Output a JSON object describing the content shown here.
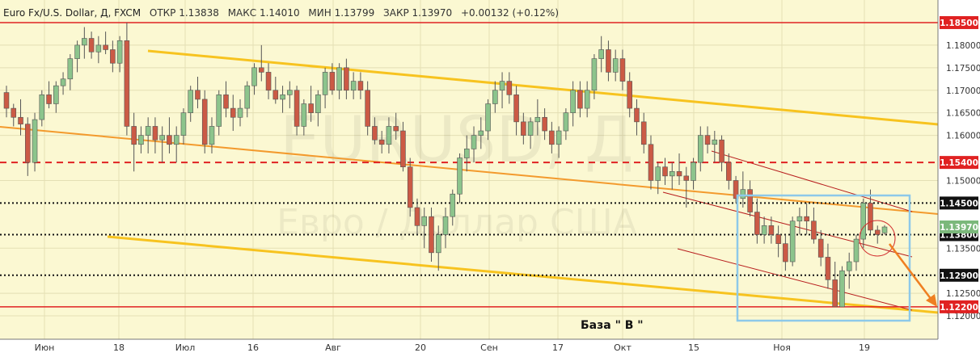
{
  "header": {
    "instrument": "Euro Fx/U.S. Dollar, Д, FXCM",
    "open": "ОТКР 1.13838",
    "high": "МАКС 1.14010",
    "low": "МИН 1.13799",
    "close": "ЗАКР 1.13970",
    "change": "+0.00132 (+0.12%)"
  },
  "watermark": {
    "line1": "EURUSD, Д",
    "line2": "Евро / Доллар США"
  },
  "annotation": "База \" В \"",
  "colors": {
    "background": "#fbf8d2",
    "bull": "#8cc48c",
    "bear": "#cb5a45",
    "channel": "#f7c31f",
    "trend_orange": "#f39a2d",
    "red_level": "#e02222",
    "black_level": "#111111",
    "thin_channel": "#b71c1c",
    "box": "#8dc9e9",
    "arrow": "#ef7f21",
    "circle": "#d32f2f"
  },
  "chart_data": {
    "type": "candlestick",
    "title": "Euro Fx/U.S. Dollar, Д, FXCM",
    "ylim": [
      1.1175,
      1.1875
    ],
    "x_ticks": [
      "Июн",
      "18",
      "Июл",
      "16",
      "Авг",
      "20",
      "Сен",
      "17",
      "Окт",
      "15",
      "Ноя",
      "19"
    ],
    "y_ticks": [
      "1.18000",
      "1.17500",
      "1.17000",
      "1.16500",
      "1.16000",
      "1.15000",
      "1.13500",
      "1.12500",
      "1.12000"
    ],
    "levels": [
      {
        "label": "1.18500",
        "value": 1.185,
        "style": "solid-red"
      },
      {
        "label": "1.15400",
        "value": 1.154,
        "style": "dashed-red"
      },
      {
        "label": "1.14500",
        "value": 1.145,
        "style": "dotted-black"
      },
      {
        "label": "1.13800",
        "value": 1.138,
        "style": "dotted-black"
      },
      {
        "label": "1.12900",
        "value": 1.129,
        "style": "dotted-black"
      },
      {
        "label": "1.12200",
        "value": 1.122,
        "style": "solid-red"
      }
    ],
    "current_price": {
      "label": "1.13970",
      "value": 1.1397
    },
    "candles": [
      [
        1.1695,
        1.171,
        1.164,
        1.166
      ],
      [
        1.166,
        1.167,
        1.162,
        1.164
      ],
      [
        1.164,
        1.168,
        1.16,
        1.1625
      ],
      [
        1.1625,
        1.164,
        1.151,
        1.154
      ],
      [
        1.154,
        1.165,
        1.152,
        1.1635
      ],
      [
        1.1635,
        1.17,
        1.162,
        1.169
      ],
      [
        1.169,
        1.172,
        1.166,
        1.167
      ],
      [
        1.167,
        1.172,
        1.165,
        1.171
      ],
      [
        1.171,
        1.174,
        1.169,
        1.1725
      ],
      [
        1.1725,
        1.178,
        1.17,
        1.177
      ],
      [
        1.177,
        1.181,
        1.174,
        1.18
      ],
      [
        1.18,
        1.184,
        1.177,
        1.1815
      ],
      [
        1.1815,
        1.183,
        1.177,
        1.1785
      ],
      [
        1.1785,
        1.182,
        1.176,
        1.18
      ],
      [
        1.18,
        1.183,
        1.178,
        1.179
      ],
      [
        1.179,
        1.181,
        1.174,
        1.176
      ],
      [
        1.176,
        1.182,
        1.174,
        1.181
      ],
      [
        1.181,
        1.185,
        1.16,
        1.162
      ],
      [
        1.162,
        1.165,
        1.152,
        1.158
      ],
      [
        1.158,
        1.162,
        1.156,
        1.16
      ],
      [
        1.16,
        1.164,
        1.156,
        1.162
      ],
      [
        1.162,
        1.164,
        1.156,
        1.159
      ],
      [
        1.159,
        1.162,
        1.154,
        1.16
      ],
      [
        1.16,
        1.164,
        1.156,
        1.158
      ],
      [
        1.158,
        1.162,
        1.154,
        1.16
      ],
      [
        1.16,
        1.166,
        1.158,
        1.165
      ],
      [
        1.165,
        1.171,
        1.163,
        1.17
      ],
      [
        1.17,
        1.173,
        1.166,
        1.168
      ],
      [
        1.168,
        1.17,
        1.156,
        1.158
      ],
      [
        1.158,
        1.164,
        1.156,
        1.162
      ],
      [
        1.162,
        1.17,
        1.16,
        1.169
      ],
      [
        1.169,
        1.172,
        1.164,
        1.166
      ],
      [
        1.166,
        1.169,
        1.161,
        1.164
      ],
      [
        1.164,
        1.168,
        1.162,
        1.166
      ],
      [
        1.166,
        1.172,
        1.164,
        1.171
      ],
      [
        1.171,
        1.176,
        1.169,
        1.175
      ],
      [
        1.175,
        1.18,
        1.172,
        1.174
      ],
      [
        1.174,
        1.176,
        1.168,
        1.17
      ],
      [
        1.17,
        1.173,
        1.167,
        1.168
      ],
      [
        1.168,
        1.171,
        1.165,
        1.169
      ],
      [
        1.169,
        1.172,
        1.166,
        1.17
      ],
      [
        1.17,
        1.171,
        1.16,
        1.162
      ],
      [
        1.162,
        1.168,
        1.16,
        1.167
      ],
      [
        1.167,
        1.171,
        1.163,
        1.165
      ],
      [
        1.165,
        1.17,
        1.162,
        1.169
      ],
      [
        1.169,
        1.175,
        1.166,
        1.174
      ],
      [
        1.174,
        1.176,
        1.169,
        1.17
      ],
      [
        1.17,
        1.176,
        1.168,
        1.175
      ],
      [
        1.175,
        1.177,
        1.168,
        1.17
      ],
      [
        1.17,
        1.174,
        1.168,
        1.172
      ],
      [
        1.172,
        1.174,
        1.168,
        1.17
      ],
      [
        1.17,
        1.172,
        1.16,
        1.162
      ],
      [
        1.162,
        1.164,
        1.158,
        1.159
      ],
      [
        1.159,
        1.161,
        1.156,
        1.158
      ],
      [
        1.158,
        1.164,
        1.156,
        1.162
      ],
      [
        1.162,
        1.165,
        1.159,
        1.161
      ],
      [
        1.161,
        1.163,
        1.152,
        1.153
      ],
      [
        1.153,
        1.155,
        1.142,
        1.144
      ],
      [
        1.144,
        1.146,
        1.138,
        1.14
      ],
      [
        1.14,
        1.144,
        1.135,
        1.142
      ],
      [
        1.142,
        1.144,
        1.132,
        1.134
      ],
      [
        1.134,
        1.14,
        1.13,
        1.138
      ],
      [
        1.138,
        1.144,
        1.135,
        1.142
      ],
      [
        1.142,
        1.148,
        1.14,
        1.147
      ],
      [
        1.147,
        1.156,
        1.145,
        1.155
      ],
      [
        1.155,
        1.16,
        1.152,
        1.157
      ],
      [
        1.157,
        1.162,
        1.154,
        1.16
      ],
      [
        1.16,
        1.164,
        1.157,
        1.161
      ],
      [
        1.161,
        1.168,
        1.159,
        1.167
      ],
      [
        1.167,
        1.172,
        1.165,
        1.17
      ],
      [
        1.17,
        1.174,
        1.166,
        1.172
      ],
      [
        1.172,
        1.174,
        1.167,
        1.169
      ],
      [
        1.169,
        1.171,
        1.16,
        1.163
      ],
      [
        1.163,
        1.165,
        1.158,
        1.16
      ],
      [
        1.16,
        1.164,
        1.157,
        1.163
      ],
      [
        1.163,
        1.168,
        1.16,
        1.164
      ],
      [
        1.164,
        1.166,
        1.159,
        1.161
      ],
      [
        1.161,
        1.163,
        1.156,
        1.158
      ],
      [
        1.158,
        1.162,
        1.155,
        1.161
      ],
      [
        1.161,
        1.166,
        1.159,
        1.165
      ],
      [
        1.165,
        1.172,
        1.162,
        1.17
      ],
      [
        1.17,
        1.172,
        1.164,
        1.166
      ],
      [
        1.166,
        1.172,
        1.164,
        1.17
      ],
      [
        1.17,
        1.178,
        1.168,
        1.177
      ],
      [
        1.177,
        1.182,
        1.174,
        1.179
      ],
      [
        1.179,
        1.181,
        1.172,
        1.174
      ],
      [
        1.174,
        1.179,
        1.172,
        1.177
      ],
      [
        1.177,
        1.179,
        1.17,
        1.172
      ],
      [
        1.172,
        1.174,
        1.164,
        1.166
      ],
      [
        1.166,
        1.168,
        1.16,
        1.163
      ],
      [
        1.163,
        1.165,
        1.156,
        1.158
      ],
      [
        1.158,
        1.16,
        1.148,
        1.15
      ],
      [
        1.15,
        1.154,
        1.147,
        1.153
      ],
      [
        1.153,
        1.155,
        1.149,
        1.151
      ],
      [
        1.151,
        1.154,
        1.148,
        1.152
      ],
      [
        1.152,
        1.156,
        1.149,
        1.151
      ],
      [
        1.151,
        1.153,
        1.144,
        1.15
      ],
      [
        1.15,
        1.155,
        1.148,
        1.154
      ],
      [
        1.154,
        1.162,
        1.152,
        1.16
      ],
      [
        1.16,
        1.162,
        1.156,
        1.158
      ],
      [
        1.158,
        1.161,
        1.154,
        1.159
      ],
      [
        1.159,
        1.16,
        1.152,
        1.154
      ],
      [
        1.154,
        1.156,
        1.148,
        1.15
      ],
      [
        1.15,
        1.151,
        1.145,
        1.146
      ],
      [
        1.146,
        1.152,
        1.144,
        1.148
      ],
      [
        1.148,
        1.15,
        1.142,
        1.143
      ],
      [
        1.143,
        1.146,
        1.136,
        1.138
      ],
      [
        1.138,
        1.142,
        1.136,
        1.14
      ],
      [
        1.14,
        1.142,
        1.136,
        1.138
      ],
      [
        1.138,
        1.14,
        1.133,
        1.136
      ],
      [
        1.136,
        1.138,
        1.13,
        1.132
      ],
      [
        1.132,
        1.142,
        1.131,
        1.141
      ],
      [
        1.141,
        1.144,
        1.138,
        1.142
      ],
      [
        1.142,
        1.145,
        1.138,
        1.141
      ],
      [
        1.141,
        1.144,
        1.136,
        1.137
      ],
      [
        1.137,
        1.139,
        1.131,
        1.133
      ],
      [
        1.133,
        1.136,
        1.126,
        1.128
      ],
      [
        1.128,
        1.132,
        1.122,
        1.122
      ],
      [
        1.122,
        1.131,
        1.122,
        1.13
      ],
      [
        1.13,
        1.134,
        1.126,
        1.132
      ],
      [
        1.132,
        1.138,
        1.13,
        1.137
      ],
      [
        1.137,
        1.146,
        1.135,
        1.145
      ],
      [
        1.145,
        1.148,
        1.138,
        1.139
      ],
      [
        1.139,
        1.14,
        1.136,
        1.138
      ],
      [
        1.1384,
        1.1401,
        1.138,
        1.1397
      ]
    ]
  }
}
